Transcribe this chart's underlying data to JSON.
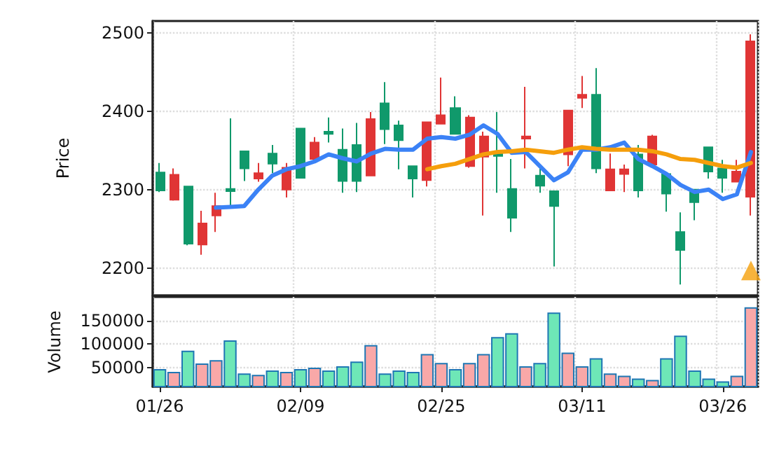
{
  "chart_data": [
    {
      "type": "candlestick",
      "ylabel": "Price",
      "ylim": [
        2165,
        2515
      ],
      "yticks": [
        2200,
        2300,
        2400,
        2500
      ],
      "grid": true,
      "tick_labels": "y",
      "categories": [
        null,
        null,
        null,
        null,
        null,
        null,
        null,
        null,
        null,
        null,
        null,
        null,
        null,
        null,
        null,
        null,
        null,
        null,
        null,
        null,
        null,
        null,
        null,
        null,
        null,
        null,
        null,
        null,
        null,
        null,
        null,
        null,
        null,
        null,
        null,
        null,
        null,
        null,
        null,
        null,
        null,
        null,
        null
      ],
      "ohlc": [
        [
          2299,
          2334,
          2297,
          2322
        ],
        [
          2319,
          2327,
          2286,
          2287
        ],
        [
          2231,
          2304,
          2229,
          2304
        ],
        [
          2257,
          2273,
          2217,
          2230
        ],
        [
          2279,
          2296,
          2246,
          2267
        ],
        [
          2298,
          2391,
          2279,
          2301
        ],
        [
          2327,
          2349,
          2311,
          2349
        ],
        [
          2321,
          2334,
          2310,
          2314
        ],
        [
          2333,
          2357,
          2321,
          2346
        ],
        [
          2328,
          2334,
          2290,
          2300
        ],
        [
          2315,
          2378,
          2315,
          2378
        ],
        [
          2360,
          2367,
          2339,
          2339
        ],
        [
          2371,
          2392,
          2360,
          2374
        ],
        [
          2311,
          2378,
          2296,
          2351
        ],
        [
          2311,
          2385,
          2297,
          2357
        ],
        [
          2390,
          2399,
          2318,
          2318
        ],
        [
          2377,
          2437,
          2358,
          2410
        ],
        [
          2363,
          2388,
          2326,
          2382
        ],
        [
          2314,
          2330,
          2290,
          2330
        ],
        [
          2386,
          2386,
          2304,
          2312
        ],
        [
          2395,
          2443,
          2384,
          2384
        ],
        [
          2371,
          2419,
          2371,
          2404
        ],
        [
          2392,
          2395,
          2328,
          2330
        ],
        [
          2368,
          2374,
          2267,
          2342
        ],
        [
          2343,
          2399,
          2296,
          2346
        ],
        [
          2264,
          2339,
          2246,
          2301
        ],
        [
          2368,
          2431,
          2327,
          2365
        ],
        [
          2305,
          2327,
          2296,
          2318
        ],
        [
          2279,
          2298,
          2202,
          2298
        ],
        [
          2401,
          2401,
          2330,
          2345
        ],
        [
          2421,
          2445,
          2404,
          2417
        ],
        [
          2327,
          2455,
          2321,
          2421
        ],
        [
          2326,
          2346,
          2299,
          2299
        ],
        [
          2326,
          2332,
          2297,
          2320
        ],
        [
          2299,
          2357,
          2290,
          2345
        ],
        [
          2368,
          2370,
          2332,
          2332
        ],
        [
          2295,
          2320,
          2272,
          2320
        ],
        [
          2223,
          2271,
          2179,
          2246
        ],
        [
          2284,
          2300,
          2261,
          2300
        ],
        [
          2323,
          2354,
          2314,
          2354
        ],
        [
          2315,
          2338,
          2296,
          2327
        ],
        [
          2323,
          2338,
          2310,
          2310
        ],
        [
          2489,
          2498,
          2267,
          2291
        ]
      ],
      "colors": [
        "#10996b",
        "#e03535",
        "#10996b",
        "#e03535",
        "#e03535",
        "#10996b",
        "#10996b",
        "#e03535",
        "#10996b",
        "#e03535",
        "#10996b",
        "#e03535",
        "#10996b",
        "#10996b",
        "#10996b",
        "#e03535",
        "#10996b",
        "#10996b",
        "#10996b",
        "#e03535",
        "#e03535",
        "#10996b",
        "#e03535",
        "#e03535",
        "#10996b",
        "#10996b",
        "#e03535",
        "#10996b",
        "#10996b",
        "#e03535",
        "#e03535",
        "#10996b",
        "#e03535",
        "#e03535",
        "#10996b",
        "#e03535",
        "#10996b",
        "#10996b",
        "#10996b",
        "#10996b",
        "#10996b",
        "#e03535",
        "#e03535"
      ],
      "series": [
        {
          "type": "line",
          "color": "#3b82f6",
          "marker": "none",
          "line_style": "solid",
          "values": [
            null,
            null,
            null,
            null,
            2277,
            2278,
            2279,
            2300,
            2318,
            2326,
            2330,
            2336,
            2345,
            2340,
            2336,
            2346,
            2352,
            2351,
            2351,
            2365,
            2367,
            2365,
            2370,
            2382,
            2371,
            2347,
            2348,
            2330,
            2312,
            2322,
            2351,
            2351,
            2354,
            2360,
            2339,
            2330,
            2320,
            2306,
            2297,
            2300,
            2288,
            2294,
            2348
          ]
        },
        {
          "type": "line",
          "color": "#f59e0b",
          "marker": "none",
          "line_style": "solid",
          "values": [
            null,
            null,
            null,
            null,
            null,
            null,
            null,
            null,
            null,
            null,
            null,
            null,
            null,
            null,
            null,
            null,
            null,
            null,
            null,
            2326,
            2330,
            2333,
            2339,
            2345,
            2348,
            2349,
            2351,
            2349,
            2347,
            2351,
            2354,
            2352,
            2351,
            2351,
            2351,
            2349,
            2345,
            2339,
            2338,
            2334,
            2330,
            2328,
            2334
          ]
        },
        {
          "type": "scatter",
          "color": "#f5a00b",
          "marker": "triangle",
          "values": [
            null,
            null,
            null,
            null,
            null,
            null,
            null,
            null,
            null,
            null,
            null,
            null,
            null,
            null,
            null,
            null,
            null,
            null,
            null,
            null,
            null,
            null,
            null,
            null,
            null,
            null,
            null,
            null,
            null,
            null,
            null,
            null,
            null,
            null,
            null,
            null,
            null,
            null,
            null,
            null,
            null,
            null,
            2197
          ]
        }
      ]
    },
    {
      "type": "bar",
      "ylabel": "Volume",
      "ylim": [
        10000,
        200000
      ],
      "yticks": [
        50000,
        100000,
        150000
      ],
      "grid": true,
      "categories": [
        "01/26",
        null,
        null,
        null,
        null,
        null,
        null,
        null,
        null,
        null,
        "02/09",
        null,
        null,
        null,
        null,
        null,
        null,
        null,
        null,
        null,
        "02/25",
        null,
        null,
        null,
        null,
        null,
        null,
        null,
        null,
        null,
        "03/11",
        null,
        null,
        null,
        null,
        null,
        null,
        null,
        null,
        null,
        "03/26",
        null,
        null
      ],
      "values": [
        47000,
        41000,
        86000,
        59000,
        66000,
        108000,
        38000,
        35000,
        44000,
        41000,
        47000,
        50000,
        44000,
        53000,
        63000,
        98000,
        38000,
        44000,
        41000,
        79000,
        60000,
        47000,
        60000,
        79000,
        115000,
        123000,
        53000,
        60000,
        167000,
        82000,
        53000,
        70000,
        38000,
        33000,
        27000,
        24000,
        70000,
        118000,
        44000,
        27000,
        21000,
        33000,
        178000
      ],
      "colors": [
        "#6ee7b7",
        "#f9a8a8",
        "#6ee7b7",
        "#f9a8a8",
        "#f9a8a8",
        "#6ee7b7",
        "#6ee7b7",
        "#f9a8a8",
        "#6ee7b7",
        "#f9a8a8",
        "#6ee7b7",
        "#f9a8a8",
        "#6ee7b7",
        "#6ee7b7",
        "#6ee7b7",
        "#f9a8a8",
        "#6ee7b7",
        "#6ee7b7",
        "#6ee7b7",
        "#f9a8a8",
        "#f9a8a8",
        "#6ee7b7",
        "#f9a8a8",
        "#f9a8a8",
        "#6ee7b7",
        "#6ee7b7",
        "#f9a8a8",
        "#6ee7b7",
        "#6ee7b7",
        "#f9a8a8",
        "#f9a8a8",
        "#6ee7b7",
        "#f9a8a8",
        "#f9a8a8",
        "#6ee7b7",
        "#f9a8a8",
        "#6ee7b7",
        "#6ee7b7",
        "#6ee7b7",
        "#6ee7b7",
        "#6ee7b7",
        "#f9a8a8",
        "#f9a8a8"
      ]
    }
  ]
}
